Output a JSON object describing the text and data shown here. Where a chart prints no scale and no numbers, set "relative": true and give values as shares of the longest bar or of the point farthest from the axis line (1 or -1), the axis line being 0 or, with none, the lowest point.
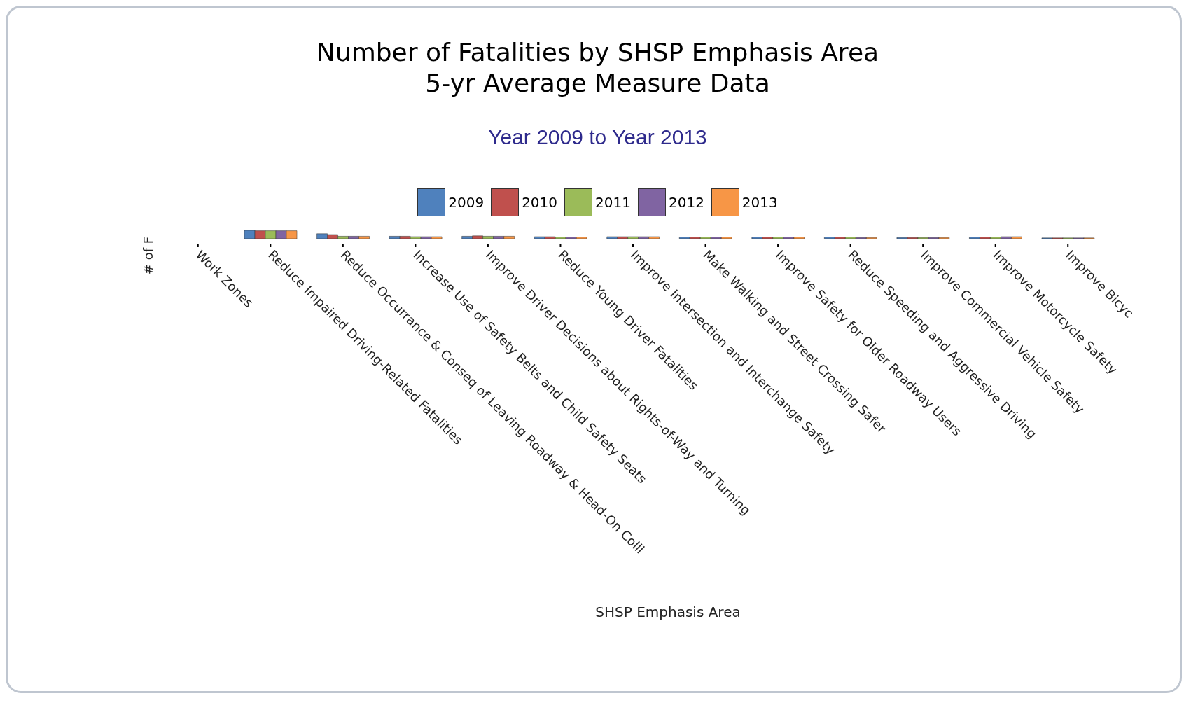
{
  "chart_data": {
    "type": "bar",
    "title": "Number of Fatalities by SHSP Emphasis Area\n5-yr Average Measure Data",
    "subtitle": "Year 2009 to Year 2013",
    "xlabel": "SHSP Emphasis Area",
    "ylabel": "# of F",
    "relative": true,
    "legend": "top",
    "categories": [
      "Work Zones",
      "Reduce Impaired Driving-Related Fatalities",
      "Reduce Occurrance & Conseq of Leaving Roadway & Head-On Colli",
      "Increase Use of Safety Belts and Child Safety Seats",
      "Improve Driver Decisions about Rights-of-Way and Turning",
      "Reduce Young Driver Fatalities",
      "Improve Intersection and Interchange Safety",
      "Make Walking and Street Crossing Safer",
      "Improve Safety for Older Roadway Users",
      "Reduce Speeding and Aggressive Driving",
      "Improve Commercial Vehicle Safety",
      "Improve Motorcycle Safety",
      "Improve Bicyc"
    ],
    "series": [
      {
        "name": "2009",
        "color": "#4f81bd",
        "values": [
          0,
          1,
          0.6,
          0.3,
          0.3,
          0.25,
          0.25,
          0.2,
          0.2,
          0.2,
          0.15,
          0.2,
          0.1
        ]
      },
      {
        "name": "2010",
        "color": "#c0504d",
        "values": [
          0,
          0.95,
          0.5,
          0.3,
          0.35,
          0.25,
          0.25,
          0.2,
          0.2,
          0.2,
          0.15,
          0.2,
          0.1
        ]
      },
      {
        "name": "2011",
        "color": "#9bbb59",
        "values": [
          0,
          0.95,
          0.3,
          0.25,
          0.3,
          0.2,
          0.25,
          0.2,
          0.2,
          0.2,
          0.15,
          0.2,
          0.1
        ]
      },
      {
        "name": "2012",
        "color": "#8064a2",
        "values": [
          0,
          0.95,
          0.3,
          0.25,
          0.3,
          0.2,
          0.25,
          0.2,
          0.2,
          0.15,
          0.15,
          0.25,
          0.1
        ]
      },
      {
        "name": "2013",
        "color": "#f79646",
        "values": [
          0,
          0.95,
          0.3,
          0.25,
          0.3,
          0.2,
          0.25,
          0.2,
          0.2,
          0.15,
          0.15,
          0.25,
          0.1
        ]
      }
    ]
  }
}
